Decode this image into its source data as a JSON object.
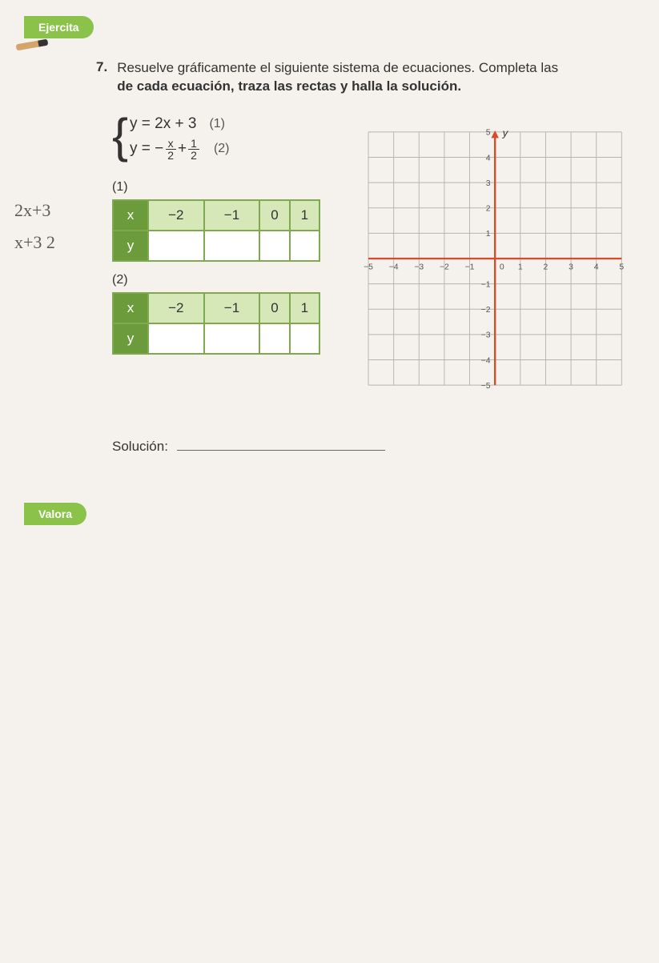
{
  "tab_top": "Ejercita",
  "tab_bottom": "Valora",
  "question_number": "7.",
  "question_text_1": "Resuelve gráficamente el siguiente sistema de ecuaciones. Completa las ",
  "question_text_2": "de cada ecuación, traza las rectas y halla la solución.",
  "eq1": "y = 2x + 3",
  "eq1_label": "(1)",
  "eq2_prefix": "y = −",
  "eq2_frac1_num": "x",
  "eq2_frac1_den": "2",
  "eq2_mid": " + ",
  "eq2_frac2_num": "1",
  "eq2_frac2_den": "2",
  "eq2_label": "(2)",
  "table1_label": "(1)",
  "table2_label": "(2)",
  "row_x": "x",
  "row_y": "y",
  "xvals": [
    "−2",
    "−1",
    "0",
    "1"
  ],
  "solucion_label": "Solución:",
  "chart": {
    "xlim": [
      -5,
      5
    ],
    "ylim": [
      -5,
      5
    ],
    "xticks": [
      -5,
      -4,
      -3,
      -2,
      -1,
      0,
      1,
      2,
      3,
      4,
      5
    ],
    "yticks": [
      -5,
      -4,
      -3,
      -2,
      -1,
      0,
      1,
      2,
      3,
      4,
      5
    ],
    "xticklabels": [
      "−5",
      "−4",
      "−3",
      "−2",
      "−1",
      "0",
      "1",
      "2",
      "3",
      "4",
      "5"
    ],
    "yticklabels": [
      "−5",
      "−4",
      "−3",
      "−2",
      "−1",
      "",
      "1",
      "2",
      "3",
      "4",
      "5"
    ],
    "y_axis_label": "y",
    "grid_color": "#b8b4aa",
    "axis_color": "#d84a2a",
    "tick_font_size": 11,
    "background": "#f5f2ed",
    "axis_width": 2.5
  },
  "handwritten1": "2x+3",
  "handwritten2": "x+3 2"
}
